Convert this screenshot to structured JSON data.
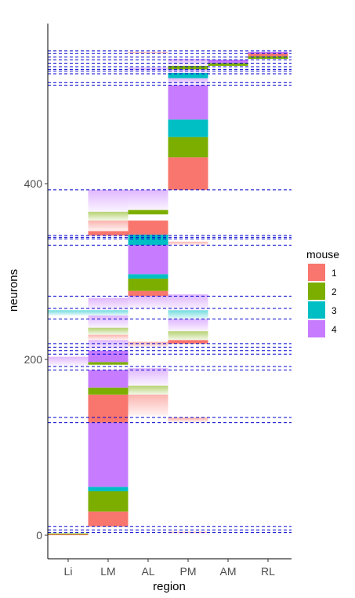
{
  "chart_data": {
    "type": "bar",
    "xlabel": "region",
    "ylabel": "neurons",
    "ylim": [
      -12,
      578
    ],
    "xticks": [
      "Li",
      "LM",
      "AL",
      "PM",
      "AM",
      "RL"
    ],
    "yticks": [
      {
        "value": 0,
        "label": "0"
      },
      {
        "value": 200,
        "label": "200"
      },
      {
        "value": 400,
        "label": "400"
      }
    ],
    "grid": false,
    "legend": {
      "title": "mouse",
      "placement": "right",
      "entries": [
        {
          "label": "1",
          "color": "#F8766D"
        },
        {
          "label": "2",
          "color": "#7CAE00"
        },
        {
          "label": "3",
          "color": "#00BFC4"
        },
        {
          "label": "4",
          "color": "#C77CFF"
        }
      ]
    },
    "solid_segments": [
      {
        "region": "Li",
        "mouse": "1",
        "y0": 0,
        "y1": 1
      },
      {
        "region": "Li",
        "mouse": "2",
        "y0": 1,
        "y1": 2
      },
      {
        "region": "LM",
        "mouse": "1",
        "y0": 10,
        "y1": 27
      },
      {
        "region": "LM",
        "mouse": "2",
        "y0": 27,
        "y1": 50
      },
      {
        "region": "LM",
        "mouse": "3",
        "y0": 50,
        "y1": 55
      },
      {
        "region": "LM",
        "mouse": "4",
        "y0": 55,
        "y1": 128
      },
      {
        "region": "LM",
        "mouse": "1",
        "y0": 128,
        "y1": 160
      },
      {
        "region": "LM",
        "mouse": "2",
        "y0": 160,
        "y1": 168
      },
      {
        "region": "LM",
        "mouse": "4",
        "y0": 168,
        "y1": 188
      },
      {
        "region": "LM",
        "mouse": "2",
        "y0": 194,
        "y1": 197
      },
      {
        "region": "LM",
        "mouse": "4",
        "y0": 197,
        "y1": 210
      },
      {
        "region": "LM",
        "mouse": "1",
        "y0": 341,
        "y1": 346
      },
      {
        "region": "AL",
        "mouse": "1",
        "y0": 272,
        "y1": 278
      },
      {
        "region": "AL",
        "mouse": "2",
        "y0": 278,
        "y1": 292
      },
      {
        "region": "AL",
        "mouse": "3",
        "y0": 292,
        "y1": 297
      },
      {
        "region": "AL",
        "mouse": "4",
        "y0": 297,
        "y1": 330
      },
      {
        "region": "AL",
        "mouse": "3",
        "y0": 330,
        "y1": 342
      },
      {
        "region": "AL",
        "mouse": "1",
        "y0": 342,
        "y1": 358
      },
      {
        "region": "AL",
        "mouse": "2",
        "y0": 365,
        "y1": 370
      },
      {
        "region": "PM",
        "mouse": "1",
        "y0": 218,
        "y1": 222
      },
      {
        "region": "PM",
        "mouse": "1",
        "y0": 393,
        "y1": 430
      },
      {
        "region": "PM",
        "mouse": "2",
        "y0": 430,
        "y1": 453
      },
      {
        "region": "PM",
        "mouse": "3",
        "y0": 453,
        "y1": 473
      },
      {
        "region": "PM",
        "mouse": "4",
        "y0": 473,
        "y1": 512
      },
      {
        "region": "PM",
        "mouse": "3",
        "y0": 520,
        "y1": 526
      },
      {
        "region": "PM",
        "mouse": "2",
        "y0": 530,
        "y1": 534
      },
      {
        "region": "AM",
        "mouse": "2",
        "y0": 534,
        "y1": 537
      },
      {
        "region": "AM",
        "mouse": "4",
        "y0": 537,
        "y1": 541
      },
      {
        "region": "RL",
        "mouse": "2",
        "y0": 542,
        "y1": 545
      },
      {
        "region": "RL",
        "mouse": "1",
        "y0": 545,
        "y1": 548
      },
      {
        "region": "RL",
        "mouse": "4",
        "y0": 548,
        "y1": 550
      }
    ],
    "faded_segments": [
      {
        "region": "Li",
        "mouse": "4",
        "y0": 193,
        "y1": 203
      },
      {
        "region": "Li",
        "mouse": "3",
        "y0": 250,
        "y1": 256
      },
      {
        "region": "LM",
        "mouse": "4",
        "y0": 210,
        "y1": 222
      },
      {
        "region": "LM",
        "mouse": "1",
        "y0": 222,
        "y1": 228
      },
      {
        "region": "LM",
        "mouse": "2",
        "y0": 228,
        "y1": 236
      },
      {
        "region": "LM",
        "mouse": "4",
        "y0": 236,
        "y1": 250
      },
      {
        "region": "LM",
        "mouse": "3",
        "y0": 250,
        "y1": 256
      },
      {
        "region": "LM",
        "mouse": "4",
        "y0": 256,
        "y1": 270
      },
      {
        "region": "LM",
        "mouse": "1",
        "y0": 346,
        "y1": 358
      },
      {
        "region": "LM",
        "mouse": "2",
        "y0": 358,
        "y1": 368
      },
      {
        "region": "LM",
        "mouse": "4",
        "y0": 368,
        "y1": 393
      },
      {
        "region": "AL",
        "mouse": "1",
        "y0": 136,
        "y1": 160
      },
      {
        "region": "AL",
        "mouse": "2",
        "y0": 160,
        "y1": 170
      },
      {
        "region": "AL",
        "mouse": "4",
        "y0": 170,
        "y1": 190
      },
      {
        "region": "AL",
        "mouse": "1",
        "y0": 214,
        "y1": 220
      },
      {
        "region": "AL",
        "mouse": "4",
        "y0": 258,
        "y1": 272
      },
      {
        "region": "AL",
        "mouse": "4",
        "y0": 370,
        "y1": 393
      },
      {
        "region": "AL",
        "mouse": "4",
        "y0": 528,
        "y1": 532
      },
      {
        "region": "AL",
        "mouse": "1",
        "y0": 548,
        "y1": 550
      },
      {
        "region": "PM",
        "mouse": "1",
        "y0": 2,
        "y1": 4
      },
      {
        "region": "PM",
        "mouse": "1",
        "y0": 128,
        "y1": 134
      },
      {
        "region": "PM",
        "mouse": "2",
        "y0": 222,
        "y1": 232
      },
      {
        "region": "PM",
        "mouse": "4",
        "y0": 232,
        "y1": 246
      },
      {
        "region": "PM",
        "mouse": "3",
        "y0": 246,
        "y1": 256
      },
      {
        "region": "PM",
        "mouse": "4",
        "y0": 256,
        "y1": 274
      },
      {
        "region": "PM",
        "mouse": "1",
        "y0": 330,
        "y1": 334
      },
      {
        "region": "PM",
        "mouse": "4",
        "y0": 512,
        "y1": 520
      },
      {
        "region": "PM",
        "mouse": "4",
        "y0": 526,
        "y1": 530
      },
      {
        "region": "PM",
        "mouse": "4",
        "y0": 534,
        "y1": 542
      }
    ],
    "dashed_hlines": [
      3,
      6,
      10,
      128,
      134,
      188,
      192,
      206,
      210,
      214,
      218,
      246,
      258,
      272,
      330,
      337,
      339,
      341,
      393,
      512,
      515,
      525,
      528,
      530,
      533,
      537,
      541,
      544,
      548,
      551
    ],
    "dashed_color": "#0000CD"
  }
}
